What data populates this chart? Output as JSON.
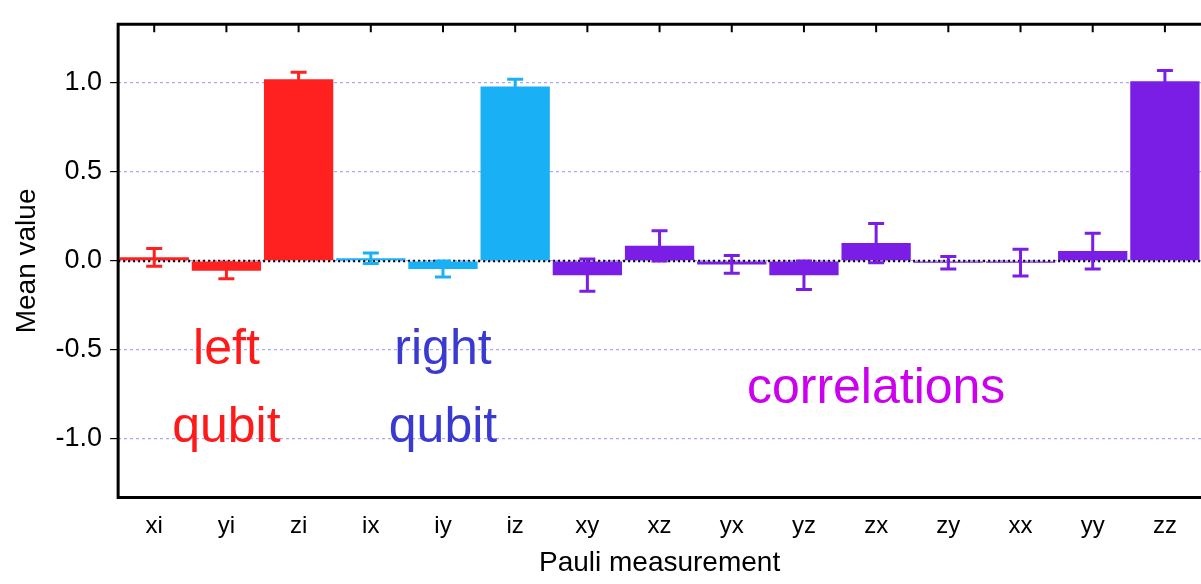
{
  "chart_data": {
    "type": "bar",
    "xlabel": "Pauli measurement",
    "ylabel": "Mean value",
    "categories": [
      "xi",
      "yi",
      "zi",
      "ix",
      "iy",
      "iz",
      "xy",
      "xz",
      "yx",
      "yz",
      "zx",
      "zy",
      "xx",
      "yy",
      "zz"
    ],
    "values": [
      0.02,
      -0.055,
      1.02,
      0.015,
      -0.045,
      0.98,
      -0.08,
      0.085,
      -0.02,
      -0.08,
      0.1,
      -0.01,
      -0.01,
      0.055,
      1.01
    ],
    "errors": [
      0.05,
      0.045,
      0.04,
      0.03,
      0.045,
      0.04,
      0.09,
      0.085,
      0.05,
      0.08,
      0.11,
      0.035,
      0.075,
      0.1,
      0.06
    ],
    "colors": [
      "#ff2020",
      "#ff2020",
      "#ff2020",
      "#1ab0f5",
      "#1ab0f5",
      "#1ab0f5",
      "#7a1ee6",
      "#7a1ee6",
      "#7a1ee6",
      "#7a1ee6",
      "#7a1ee6",
      "#7a1ee6",
      "#7a1ee6",
      "#7a1ee6",
      "#7a1ee6"
    ],
    "ylim": [
      -1.33,
      1.33
    ],
    "yticks": [
      {
        "value": -1,
        "label": "-1.0"
      },
      {
        "value": -0.5,
        "label": "-0.5"
      },
      {
        "value": 0,
        "label": "0.0"
      },
      {
        "value": 0.5,
        "label": "0.5"
      },
      {
        "value": 1,
        "label": "1.0"
      }
    ],
    "grid": "y",
    "ref_lines": [
      {
        "axis": "y",
        "value": 0,
        "color": "#000000",
        "line_style": "dotted"
      }
    ],
    "annotations": [
      "left qubit",
      "right qubit",
      "correlations"
    ]
  }
}
